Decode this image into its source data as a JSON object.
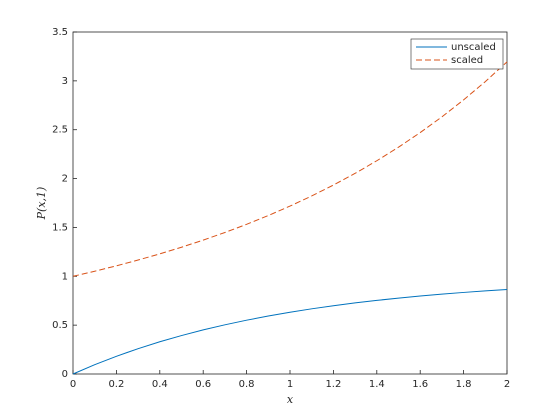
{
  "chart_data": {
    "type": "line",
    "xlabel": "x",
    "ylabel": "P(x,1)",
    "x": [
      0,
      0.1,
      0.2,
      0.3,
      0.4,
      0.5,
      0.6,
      0.7,
      0.8,
      0.9,
      1.0,
      1.1,
      1.2,
      1.3,
      1.4,
      1.5,
      1.6,
      1.7,
      1.8,
      1.9,
      2.0
    ],
    "series": [
      {
        "name": "unscaled",
        "color": "#0072bd",
        "dash": false,
        "values": [
          0,
          0.0952,
          0.1813,
          0.2592,
          0.3297,
          0.3935,
          0.4512,
          0.5034,
          0.5507,
          0.5934,
          0.6321,
          0.6671,
          0.6988,
          0.7275,
          0.7534,
          0.7769,
          0.7981,
          0.8173,
          0.8347,
          0.8504,
          0.8647
        ]
      },
      {
        "name": "scaled",
        "color": "#d95319",
        "dash": true,
        "values": [
          1,
          1.0517,
          1.107,
          1.1662,
          1.2296,
          1.2974,
          1.3702,
          1.4482,
          1.5319,
          1.6218,
          1.7183,
          1.822,
          1.9334,
          2.0533,
          2.1823,
          2.3211,
          2.4706,
          2.6317,
          2.8053,
          2.9926,
          3.1945
        ]
      }
    ],
    "xlim": [
      0,
      2
    ],
    "xticks": [
      0,
      0.2,
      0.4,
      0.6,
      0.8,
      1,
      1.2,
      1.4,
      1.6,
      1.8,
      2
    ],
    "ylim": [
      0,
      3.5
    ],
    "yticks": [
      0,
      0.5,
      1,
      1.5,
      2,
      2.5,
      3,
      3.5
    ],
    "grid": false,
    "legend": "top-right"
  }
}
